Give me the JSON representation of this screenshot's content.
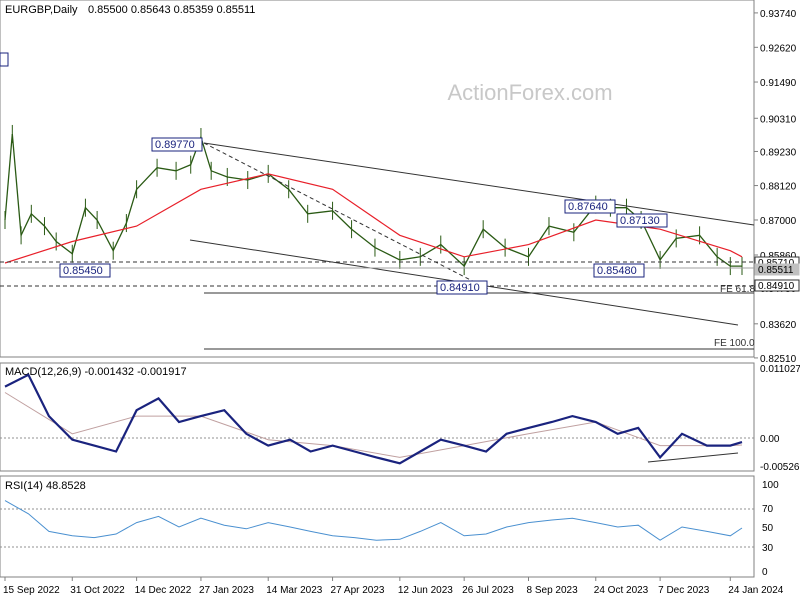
{
  "header": {
    "symbol": "EURGBP,Daily",
    "ohlc": "0.85500 0.85643 0.85359 0.85511"
  },
  "watermark": "ActionForex.com",
  "colors": {
    "candle": "#2a5a14",
    "ma": "#e8202a",
    "macd": "#1a237e",
    "signal": "#c0a0a0",
    "rsi": "#4a90d0",
    "trend": "#333333",
    "label_border": "#1a237e",
    "grid": "#606060"
  },
  "chart_data": [
    {
      "type": "candlestick",
      "title": "EURGBP,Daily",
      "ylim": [
        0.8254,
        0.9416
      ],
      "y_ticks": [
        "0.93740",
        "0.92620",
        "0.91490",
        "0.90310",
        "0.89230",
        "0.88120",
        "0.87000",
        "0.85860",
        "0.84780",
        "0.83620",
        "0.82510"
      ],
      "price_scale_labels": [
        "0.85710",
        "0.85511",
        "0.84910"
      ],
      "x_ticks": [
        "15 Sep 2022",
        "31 Oct 2022",
        "14 Dec 2022",
        "27 Jan 2023",
        "14 Mar 2023",
        "27 Apr 2023",
        "12 Jun 2023",
        "26 Jul 2023",
        "8 Sep 2023",
        "24 Oct 2023",
        "7 Dec 2023",
        "24 Jan 2024"
      ],
      "series": [
        {
          "x": [
            "15 Sep 2022",
            "20 Sep 2022",
            "26 Sep 2022",
            "3 Oct 2022",
            "12 Oct 2022",
            "20 Oct 2022",
            "31 Oct 2022",
            "9 Nov 2022",
            "17 Nov 2022",
            "28 Nov 2022",
            "7 Dec 2022",
            "14 Dec 2022",
            "28 Dec 2022",
            "10 Jan 2023",
            "20 Jan 2023",
            "27 Jan 2023",
            "3 Feb 2023",
            "14 Feb 2023",
            "28 Feb 2023",
            "14 Mar 2023",
            "28 Mar 2023",
            "10 Apr 2023",
            "27 Apr 2023",
            "10 May 2023",
            "26 May 2023",
            "12 Jun 2023",
            "26 Jun 2023",
            "10 Jul 2023",
            "26 Jul 2023",
            "8 Aug 2023",
            "23 Aug 2023",
            "8 Sep 2023",
            "22 Sep 2023",
            "9 Oct 2023",
            "24 Oct 2023",
            "3 Nov 2023",
            "14 Nov 2023",
            "24 Nov 2023",
            "7 Dec 2023",
            "18 Dec 2023",
            "3 Jan 2024",
            "15 Jan 2024",
            "24 Jan 2024",
            "1 Feb 2024"
          ],
          "values": [
            0.87,
            0.898,
            0.865,
            0.872,
            0.868,
            0.863,
            0.859,
            0.874,
            0.87,
            0.86,
            0.869,
            0.88,
            0.887,
            0.886,
            0.888,
            0.897,
            0.886,
            0.884,
            0.883,
            0.885,
            0.88,
            0.872,
            0.873,
            0.867,
            0.861,
            0.857,
            0.858,
            0.862,
            0.855,
            0.867,
            0.861,
            0.858,
            0.868,
            0.866,
            0.875,
            0.874,
            0.874,
            0.87,
            0.857,
            0.864,
            0.865,
            0.858,
            0.855,
            0.855
          ]
        },
        {
          "name": "",
          "x": [
            "15 Sep 2022",
            "31 Oct 2022",
            "14 Dec 2022",
            "27 Jan 2023",
            "14 Mar 2023",
            "27 Apr 2023",
            "12 Jun 2023",
            "26 Jul 2023",
            "8 Sep 2023",
            "24 Oct 2023",
            "7 Dec 2023",
            "24 Jan 2024",
            "1 Feb 2024"
          ],
          "values": [
            0.856,
            0.863,
            0.868,
            0.88,
            0.885,
            0.88,
            0.865,
            0.858,
            0.862,
            0.87,
            0.867,
            0.86,
            0.858
          ]
        }
      ],
      "annotations": [
        "0.89770",
        "0.85450",
        "0.84910",
        "0.87640",
        "0.87130",
        "0.85480",
        "FE 61.8",
        "FE 100.0"
      ]
    },
    {
      "type": "line",
      "title": "MACD(12,26,9) -0.001432 -0.001917",
      "ylim": [
        -0.0063,
        0.012
      ],
      "y_ticks": [
        "0.011027",
        "0.00",
        "-0.005267"
      ],
      "series": [
        {
          "name": "",
          "x": [
            "15 Sep 2022",
            "1 Oct 2022",
            "15 Oct 2022",
            "31 Oct 2022",
            "15 Nov 2022",
            "30 Nov 2022",
            "14 Dec 2022",
            "29 Dec 2022",
            "12 Jan 2023",
            "27 Jan 2023",
            "12 Feb 2023",
            "27 Feb 2023",
            "14 Mar 2023",
            "29 Mar 2023",
            "12 Apr 2023",
            "27 Apr 2023",
            "12 May 2023",
            "27 May 2023",
            "12 Jun 2023",
            "26 Jun 2023",
            "10 Jul 2023",
            "26 Jul 2023",
            "10 Aug 2023",
            "24 Aug 2023",
            "8 Sep 2023",
            "24 Sep 2023",
            "8 Oct 2023",
            "24 Oct 2023",
            "8 Nov 2023",
            "22 Nov 2023",
            "7 Dec 2023",
            "22 Dec 2023",
            "8 Jan 2024",
            "24 Jan 2024",
            "1 Feb 2024"
          ],
          "values": [
            0.008,
            0.01,
            0.003,
            -0.001,
            -0.002,
            -0.003,
            0.004,
            0.006,
            0.002,
            0.003,
            0.004,
            0.0,
            -0.002,
            -0.001,
            -0.003,
            -0.002,
            -0.003,
            -0.004,
            -0.005,
            -0.003,
            -0.001,
            -0.002,
            -0.003,
            0.0,
            0.001,
            0.002,
            0.003,
            0.002,
            0.0,
            0.001,
            -0.004,
            0.0,
            -0.002,
            -0.002,
            -0.0014
          ]
        },
        {
          "name": "",
          "x": [
            "15 Sep 2022",
            "31 Oct 2022",
            "14 Dec 2022",
            "27 Jan 2023",
            "14 Mar 2023",
            "27 Apr 2023",
            "12 Jun 2023",
            "26 Jul 2023",
            "8 Sep 2023",
            "24 Oct 2023",
            "7 Dec 2023",
            "24 Jan 2024",
            "1 Feb 2024"
          ],
          "values": [
            0.007,
            0.0,
            0.003,
            0.003,
            -0.001,
            -0.002,
            -0.004,
            -0.002,
            0.0,
            0.002,
            -0.002,
            -0.002,
            -0.0019
          ]
        }
      ]
    },
    {
      "type": "line",
      "title": "RSI(14) 48.8528",
      "ylim": [
        0,
        100
      ],
      "y_ticks": [
        "100",
        "70",
        "50",
        "30",
        "0"
      ],
      "series": [
        {
          "name": "",
          "x": [
            "15 Sep 2022",
            "1 Oct 2022",
            "15 Oct 2022",
            "31 Oct 2022",
            "15 Nov 2022",
            "30 Nov 2022",
            "14 Dec 2022",
            "29 Dec 2022",
            "12 Jan 2023",
            "27 Jan 2023",
            "12 Feb 2023",
            "27 Feb 2023",
            "14 Mar 2023",
            "29 Mar 2023",
            "12 Apr 2023",
            "27 Apr 2023",
            "12 May 2023",
            "27 May 2023",
            "12 Jun 2023",
            "26 Jun 2023",
            "10 Jul 2023",
            "26 Jul 2023",
            "10 Aug 2023",
            "24 Aug 2023",
            "8 Sep 2023",
            "24 Sep 2023",
            "8 Oct 2023",
            "24 Oct 2023",
            "8 Nov 2023",
            "22 Nov 2023",
            "7 Dec 2023",
            "22 Dec 2023",
            "8 Jan 2024",
            "24 Jan 2024",
            "1 Feb 2024"
          ],
          "values": [
            80,
            65,
            45,
            40,
            38,
            42,
            55,
            62,
            50,
            60,
            52,
            48,
            55,
            50,
            45,
            40,
            38,
            35,
            36,
            45,
            55,
            40,
            42,
            50,
            55,
            58,
            60,
            55,
            50,
            52,
            35,
            50,
            45,
            40,
            48.85
          ]
        }
      ]
    }
  ],
  "x_ticks": [
    "15 Sep 2022",
    "31 Oct 2022",
    "14 Dec 2022",
    "27 Jan 2023",
    "14 Mar 2023",
    "27 Apr 2023",
    "12 Jun 2023",
    "26 Jul 2023",
    "8 Sep 2023",
    "24 Oct 2023",
    "7 Dec 2023",
    "24 Jan 2024"
  ],
  "price_ticks": [
    "0.93740",
    "0.92620",
    "0.91490",
    "0.90310",
    "0.89230",
    "0.88120",
    "0.87000",
    "0.85860",
    "0.84780",
    "0.83620",
    "0.82510"
  ],
  "price_scale_labels": [
    "0.85710",
    "0.85511",
    "0.84910"
  ],
  "annotations": {
    "high_jan": "0.89770",
    "low_oct": "0.85450",
    "low_jul": "0.84910",
    "high_oct": "0.87640",
    "high_nov": "0.87130",
    "low_dec": "0.85480",
    "fe618": "FE 61.8",
    "fe100": "FE 100.0"
  },
  "macd": {
    "title": "MACD(12,26,9) -0.001432 -0.001917",
    "ticks": [
      "0.011027",
      "0.00",
      "-0.005267"
    ]
  },
  "rsi": {
    "title": "RSI(14) 48.8528",
    "ticks": [
      "100",
      "70",
      "50",
      "30",
      "0"
    ]
  }
}
